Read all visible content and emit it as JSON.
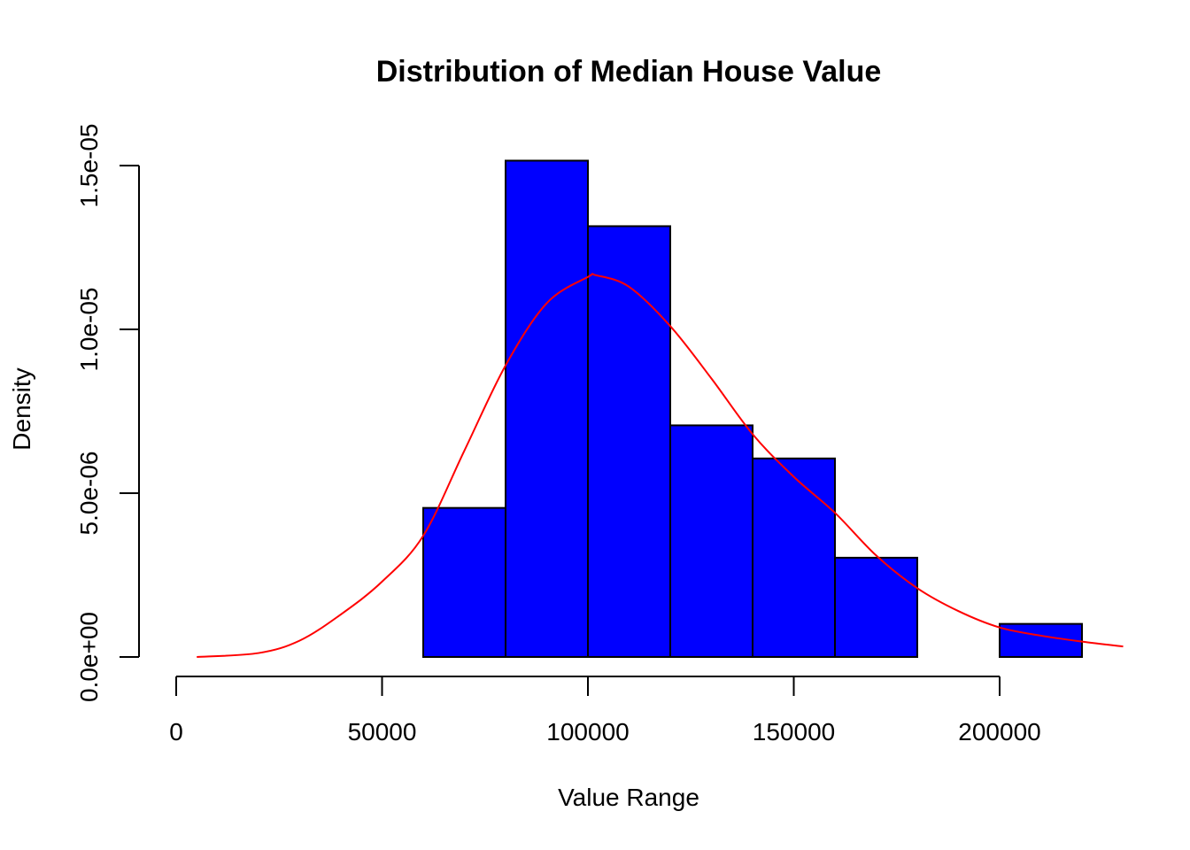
{
  "chart_data": {
    "type": "bar",
    "title": "Distribution of Median House Value",
    "xlabel": "Value Range",
    "ylabel": "Density",
    "bins": [
      {
        "start": 60000,
        "end": 80000,
        "density": 4.55e-06
      },
      {
        "start": 80000,
        "end": 100000,
        "density": 1.515e-05
      },
      {
        "start": 100000,
        "end": 120000,
        "density": 1.315e-05
      },
      {
        "start": 120000,
        "end": 140000,
        "density": 7.07e-06
      },
      {
        "start": 140000,
        "end": 160000,
        "density": 6.06e-06
      },
      {
        "start": 160000,
        "end": 180000,
        "density": 3.03e-06
      },
      {
        "start": 180000,
        "end": 200000,
        "density": 0
      },
      {
        "start": 200000,
        "end": 220000,
        "density": 1.01e-06
      }
    ],
    "density_curve": {
      "x": [
        5000,
        20000,
        30000,
        40000,
        50000,
        60000,
        70000,
        80000,
        90000,
        100000,
        102000,
        110000,
        120000,
        130000,
        140000,
        150000,
        160000,
        170000,
        180000,
        190000,
        200000,
        210000,
        220000,
        230000
      ],
      "y": [
        0,
        1.2e-07,
        5e-07,
        1.3e-06,
        2.3e-06,
        3.7e-06,
        6.3e-06,
        8.9e-06,
        1.08e-05,
        1.16e-05,
        1.165e-05,
        1.13e-05,
        1.01e-05,
        8.5e-06,
        6.8e-06,
        5.5e-06,
        4.4e-06,
        3.1e-06,
        2.1e-06,
        1.4e-06,
        9e-07,
        6.5e-07,
        4.7e-07,
        3.2e-07
      ]
    },
    "xlim": [
      0,
      230000
    ],
    "ylim": [
      0,
      1.5e-05
    ],
    "x_ticks": [
      {
        "value": 0,
        "label": "0"
      },
      {
        "value": 50000,
        "label": "50000"
      },
      {
        "value": 100000,
        "label": "100000"
      },
      {
        "value": 150000,
        "label": "150000"
      },
      {
        "value": 200000,
        "label": "200000"
      }
    ],
    "y_ticks": [
      {
        "value": 0,
        "label": "0.0e+00"
      },
      {
        "value": 5e-06,
        "label": "5.0e-06"
      },
      {
        "value": 1e-05,
        "label": "1.0e-05"
      },
      {
        "value": 1.5e-05,
        "label": "1.5e-05"
      }
    ],
    "colors": {
      "bar_fill": "#0000ff",
      "bar_border": "#000000",
      "density_line": "#ff0000"
    },
    "grid": false,
    "legend": "none"
  }
}
